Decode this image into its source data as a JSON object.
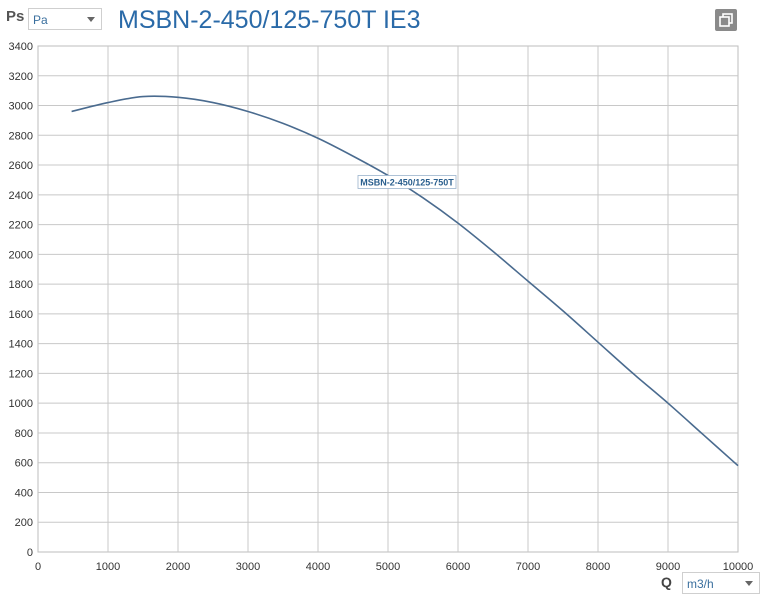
{
  "header": {
    "ps_label": "Ps",
    "ps_unit": "Pa",
    "title": "MSBN-2-450/125-750T IE3"
  },
  "footer": {
    "q_label": "Q",
    "q_unit": "m3/h"
  },
  "icons": {
    "unit_dropdown": "chevron-down-icon",
    "copy": "copy-icon"
  },
  "colors": {
    "title": "#2a6aa8",
    "curve": "#4a6b8f",
    "grid": "#c8c8c8"
  },
  "chart_data": {
    "type": "line",
    "title": "MSBN-2-450/125-750T IE3",
    "xlabel": "Q",
    "ylabel": "Ps",
    "xlim": [
      0,
      10000
    ],
    "ylim": [
      0,
      3400
    ],
    "xticks": [
      "0",
      "1000",
      "2000",
      "3000",
      "4000",
      "5000",
      "6000",
      "7000",
      "8000",
      "9000",
      "10000"
    ],
    "yticks": [
      "0",
      "200",
      "400",
      "600",
      "800",
      "1000",
      "1200",
      "1400",
      "1600",
      "1800",
      "2000",
      "2200",
      "2400",
      "2600",
      "2800",
      "3000",
      "3200",
      "3400"
    ],
    "grid": true,
    "series": [
      {
        "name": "MSBN-2-450/125-750T",
        "x": [
          480,
          1000,
          1500,
          2000,
          2500,
          3000,
          3500,
          4000,
          4500,
          5000,
          5500,
          6000,
          6500,
          7000,
          7500,
          8000,
          8500,
          9000,
          9500,
          10000
        ],
        "y": [
          2960,
          3020,
          3060,
          3055,
          3020,
          2960,
          2880,
          2780,
          2660,
          2530,
          2380,
          2210,
          2020,
          1820,
          1620,
          1410,
          1200,
          1000,
          790,
          580
        ]
      }
    ]
  }
}
